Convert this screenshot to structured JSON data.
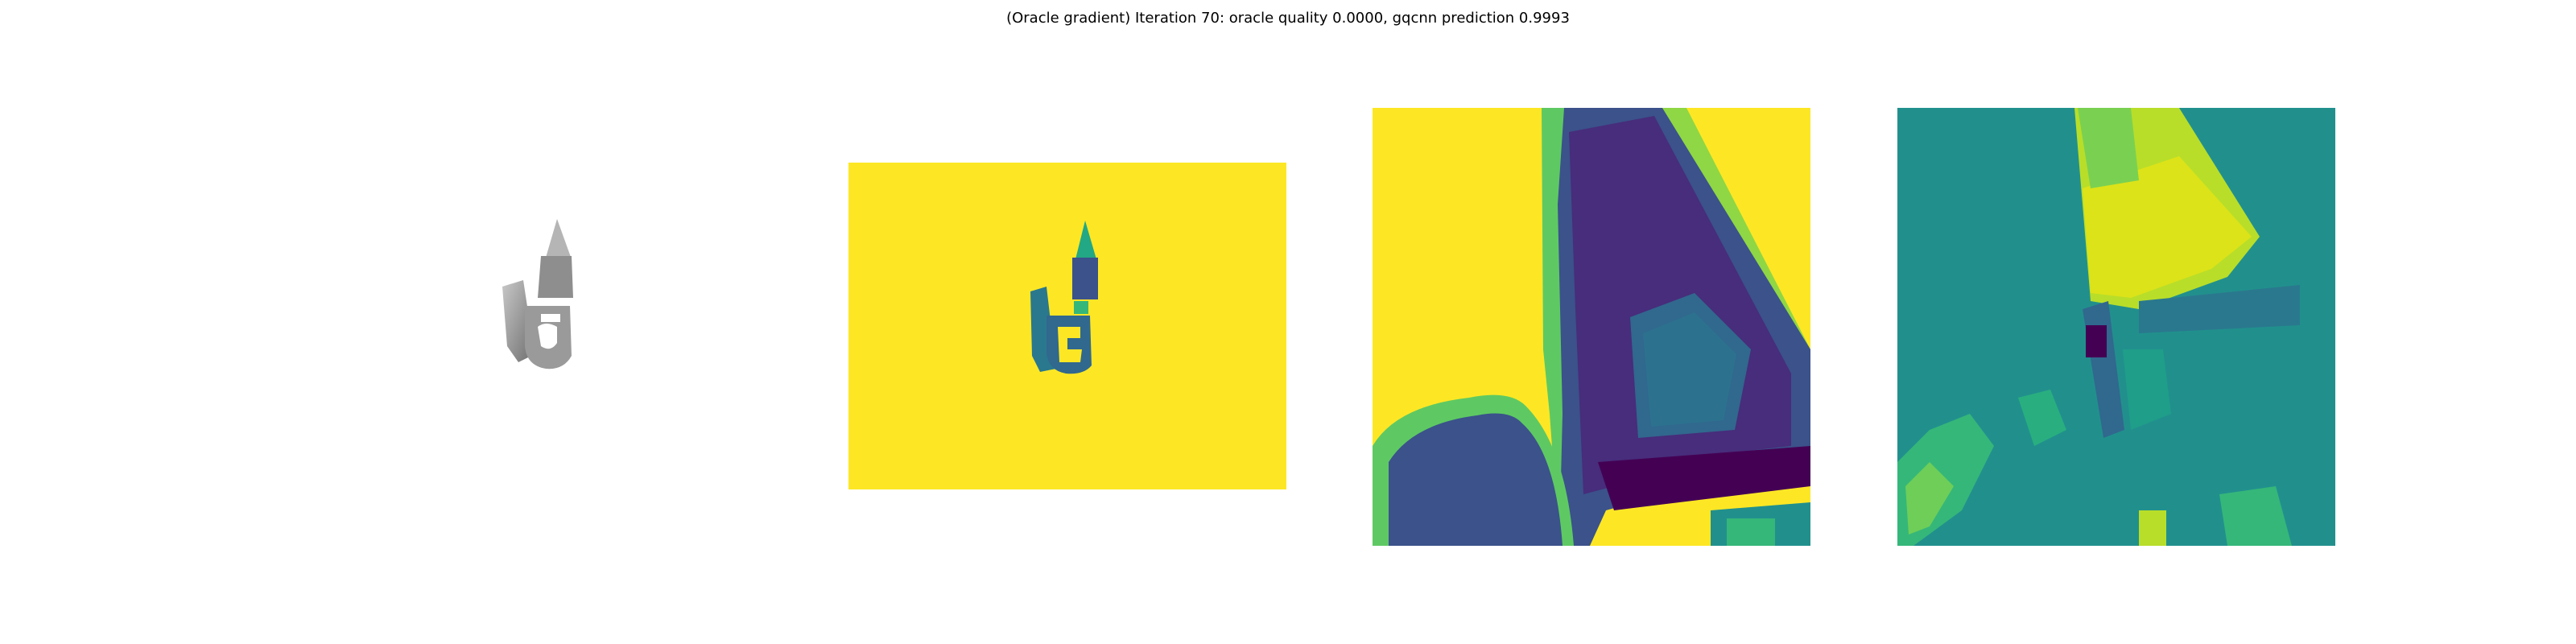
{
  "figure": {
    "title": "(Oracle gradient) Iteration 70: oracle quality 0.0000, gqcnn prediction 0.9993"
  },
  "colors": {
    "background": "#ffffff",
    "viridis_yellow": "#fde725",
    "viridis_teal": "#21908d",
    "viridis_blue": "#3b528b",
    "viridis_purple": "#482878",
    "viridis_dark": "#440154",
    "viridis_green": "#5ec962",
    "render_gray": "#9a9a9a"
  },
  "panels": [
    {
      "name": "object-render",
      "type": "grayscale-render"
    },
    {
      "name": "depth-image",
      "type": "viridis-heatmap"
    },
    {
      "name": "depth-crop",
      "type": "viridis-heatmap"
    },
    {
      "name": "gradient-map",
      "type": "viridis-heatmap"
    }
  ]
}
